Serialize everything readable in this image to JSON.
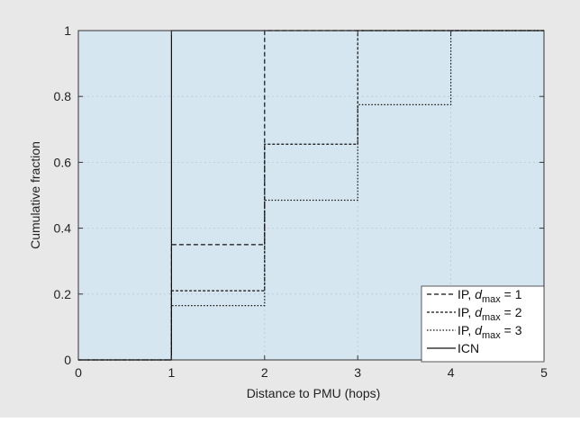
{
  "chart_data": {
    "type": "line",
    "step": true,
    "xlabel": "Distance to PMU (hops)",
    "ylabel": "Cumulative fraction",
    "xlim": [
      0,
      5
    ],
    "ylim": [
      0,
      1
    ],
    "xticks": [
      0,
      1,
      2,
      3,
      4,
      5
    ],
    "yticks": [
      0,
      0.2,
      0.4,
      0.6,
      0.8,
      1
    ],
    "xtick_labels": [
      "0",
      "1",
      "2",
      "3",
      "4",
      "5"
    ],
    "ytick_labels": [
      "0",
      "0.2",
      "0.4",
      "0.6",
      "0.8",
      "1"
    ],
    "grid": true,
    "legend_position": "bottom-right",
    "colors": {
      "outer_background": "#e8e8e8",
      "plot_background": "#d6e6f0",
      "grid": "#b8c8d6",
      "axes": "#333333",
      "series": "#111111"
    },
    "series": [
      {
        "name_prefix": "IP, ",
        "name_var": "d",
        "name_sub": "max",
        "name_suffix": " = 1",
        "dash": "dashed",
        "x": [
          0,
          1,
          2,
          3
        ],
        "y": [
          0,
          0.35,
          1.0,
          1.0
        ]
      },
      {
        "name_prefix": "IP, ",
        "name_var": "d",
        "name_sub": "max",
        "name_suffix": " = 2",
        "dash": "densely-dotted",
        "x": [
          0,
          1,
          2,
          3
        ],
        "y": [
          0,
          0.21,
          0.655,
          1.0
        ]
      },
      {
        "name_prefix": "IP, ",
        "name_var": "d",
        "name_sub": "max",
        "name_suffix": " = 3",
        "dash": "dotted",
        "x": [
          0,
          1,
          2,
          3,
          4
        ],
        "y": [
          0,
          0.165,
          0.485,
          0.775,
          1.0
        ]
      },
      {
        "name_prefix": "ICN",
        "name_var": "",
        "name_sub": "",
        "name_suffix": "",
        "dash": "solid",
        "x": [
          0,
          1
        ],
        "y": [
          0,
          1.0
        ]
      }
    ]
  }
}
